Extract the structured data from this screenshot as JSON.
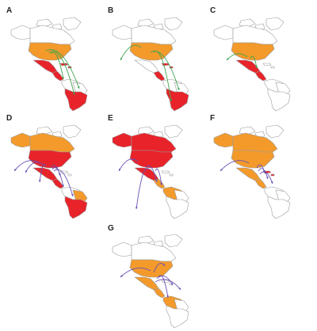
{
  "figure": {
    "panels": [
      {
        "label": "A",
        "highlight_orange": [
          "united-states"
        ],
        "highlight_red": [
          "mexico",
          "central-america",
          "caribbean",
          "south-america"
        ],
        "flow_color": "#3fa34d"
      },
      {
        "label": "B",
        "highlight_orange": [
          "united-states"
        ],
        "highlight_red": [
          "central-america",
          "caribbean",
          "south-america"
        ],
        "flow_color": "#3fa34d"
      },
      {
        "label": "C",
        "highlight_orange": [
          "united-states"
        ],
        "highlight_red": [
          "mexico",
          "central-america"
        ],
        "flow_color": "#3fa34d"
      },
      {
        "label": "D",
        "highlight_orange": [
          "canada",
          "alaska",
          "brazil-north"
        ],
        "highlight_red": [
          "united-states",
          "mexico",
          "central-america",
          "south-america"
        ],
        "flow_color": "#6a4fb5"
      },
      {
        "label": "E",
        "highlight_orange": [
          "central-america",
          "south-america-north"
        ],
        "highlight_red": [
          "canada",
          "alaska",
          "united-states",
          "mexico"
        ],
        "flow_color": "#6a4fb5"
      },
      {
        "label": "F",
        "highlight_orange": [
          "canada",
          "alaska",
          "united-states",
          "mexico",
          "central-america"
        ],
        "highlight_red": [
          "caribbean"
        ],
        "flow_color": "#6a4fb5"
      },
      {
        "label": "G",
        "highlight_orange": [
          "united-states",
          "mexico",
          "central-america",
          "south-america-north"
        ],
        "highlight_red": [],
        "flow_color": "#6a4fb5"
      }
    ],
    "colors": {
      "orange": "#f39a2b",
      "red": "#e8232a",
      "land": "#ffffff",
      "outline": "#9a9a9a",
      "green_flow": "#3fa34d",
      "purple_flow": "#6a4fb5"
    }
  }
}
